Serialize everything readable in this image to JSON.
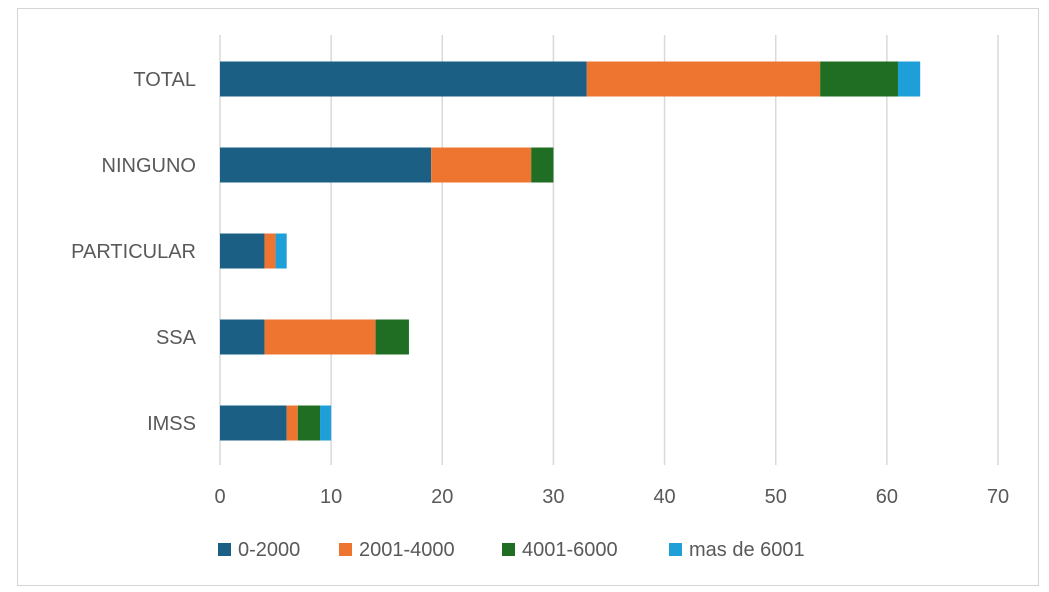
{
  "chart_data": {
    "type": "bar",
    "orientation": "horizontal",
    "stacked": true,
    "categories": [
      "TOTAL",
      "NINGUNO",
      "PARTICULAR",
      "SSA",
      "IMSS"
    ],
    "series": [
      {
        "name": "0-2000",
        "color": "#1b5f85",
        "values": [
          33,
          19,
          4,
          4,
          6
        ]
      },
      {
        "name": "2001-4000",
        "color": "#ee7530",
        "values": [
          21,
          9,
          1,
          10,
          1
        ]
      },
      {
        "name": "4001-6000",
        "color": "#1f6e23",
        "values": [
          7,
          2,
          0,
          3,
          2
        ]
      },
      {
        "name": "mas de 6001",
        "color": "#1f9fd8",
        "values": [
          2,
          0,
          1,
          0,
          1
        ]
      }
    ],
    "xlim": [
      0,
      70
    ],
    "xticks": [
      "0",
      "10",
      "20",
      "30",
      "40",
      "50",
      "60",
      "70"
    ],
    "title": "",
    "xlabel": "",
    "ylabel": "",
    "grid": "vertical",
    "legend_position": "bottom"
  }
}
